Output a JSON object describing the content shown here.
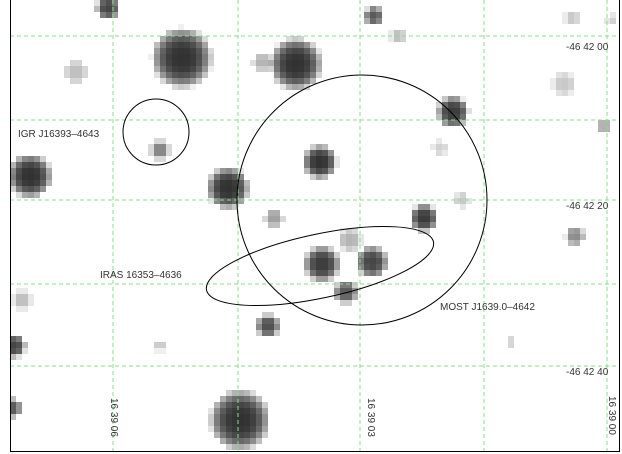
{
  "colors": {
    "background": "#ffffff",
    "grid": "#88dd88",
    "source": "#333333",
    "outline": "#000000"
  },
  "dec_labels": [
    "-46 42 00",
    "-46 42 20",
    "-46 42 40"
  ],
  "ra_labels": [
    "16 39 06",
    "16 39 03",
    "16 39 00"
  ],
  "sources": [
    {
      "name": "IGR J16393-4643",
      "label": "IGR J16393–4643"
    },
    {
      "name": "IRAS 16353-4636",
      "label": "IRAS 16353–4636"
    },
    {
      "name": "MOST J1639.0-4642",
      "label": "MOST J1639.0–4642"
    }
  ]
}
